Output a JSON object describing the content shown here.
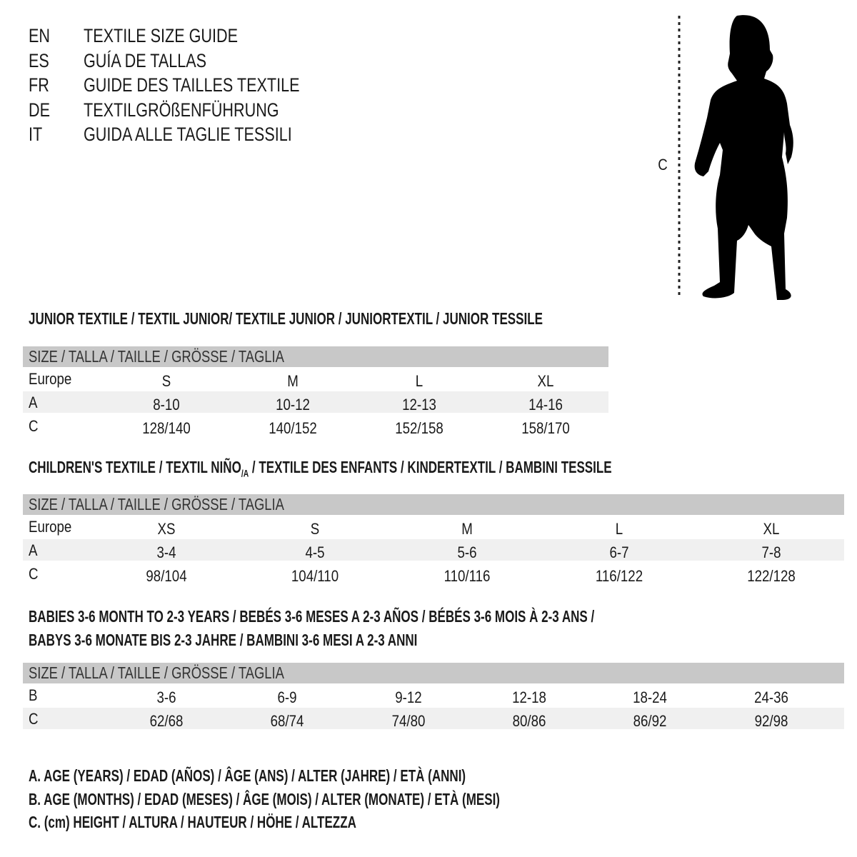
{
  "languages": [
    {
      "code": "EN",
      "title": "TEXTILE SIZE GUIDE"
    },
    {
      "code": "ES",
      "title": "GUÍA DE TALLAS"
    },
    {
      "code": "FR",
      "title": "GUIDE DES TAILLES TEXTILE"
    },
    {
      "code": "DE",
      "title": "TEXTILGRÖßENFÜHRUNG"
    },
    {
      "code": "IT",
      "title": "GUIDA ALLE TAGLIE TESSILI"
    }
  ],
  "figure": {
    "height_label": "C",
    "icon": "child-silhouette"
  },
  "size_bar": "SIZE / TALLA / TAILLE / GRÖSSE / TAGLIA",
  "colors": {
    "header_bar": "#c8c8c8",
    "stripe": "#f0f0f0",
    "text": "#1a1a1a"
  },
  "junior": {
    "heading": "JUNIOR TEXTILE / TEXTIL JUNIOR/ TEXTILE JUNIOR / JUNIORTEXTIL / JUNIOR TESSILE",
    "rows": [
      {
        "label": "Europe",
        "values": [
          "S",
          "M",
          "L",
          "XL"
        ]
      },
      {
        "label": "A",
        "values": [
          "8-10",
          "10-12",
          "12-13",
          "14-16"
        ]
      },
      {
        "label": "C",
        "values": [
          "128/140",
          "140/152",
          "152/158",
          "158/170"
        ]
      }
    ]
  },
  "children": {
    "heading_a": "CHILDREN'S TEXTILE / TEXTIL NIÑO",
    "heading_sub": "/A",
    "heading_b": " / TEXTILE DES ENFANTS / KINDERTEXTIL / BAMBINI TESSILE",
    "rows": [
      {
        "label": "Europe",
        "values": [
          "XS",
          "S",
          "M",
          "L",
          "XL"
        ]
      },
      {
        "label": "A",
        "values": [
          "3-4",
          "4-5",
          "5-6",
          "6-7",
          "7-8"
        ]
      },
      {
        "label": "C",
        "values": [
          "98/104",
          "104/110",
          "110/116",
          "116/122",
          "122/128"
        ]
      }
    ]
  },
  "babies": {
    "heading_line1": "BABIES 3-6 MONTH TO 2-3 YEARS / BEBÉS 3-6 MESES A 2-3 AÑOS / BÉBÉS 3-6 MOIS À 2-3 ANS /",
    "heading_line2": "BABYS 3-6 MONATE BIS 2-3 JAHRE / BAMBINI 3-6 MESI A 2-3 ANNI",
    "rows": [
      {
        "label": "B",
        "values": [
          "3-6",
          "6-9",
          "9-12",
          "12-18",
          "18-24",
          "24-36"
        ]
      },
      {
        "label": "C",
        "values": [
          "62/68",
          "68/74",
          "74/80",
          "80/86",
          "86/92",
          "92/98"
        ]
      }
    ]
  },
  "legend": [
    "A. AGE (YEARS) / EDAD (AÑOS) / ÂGE (ANS) / ALTER (JAHRE) / ETÀ (ANNI)",
    "B. AGE (MONTHS) / EDAD (MESES) / ÂGE (MOIS) / ALTER (MONATE) / ETÀ (MESI)",
    "C. (cm) HEIGHT / ALTURA / HAUTEUR / HÖHE / ALTEZZA"
  ]
}
